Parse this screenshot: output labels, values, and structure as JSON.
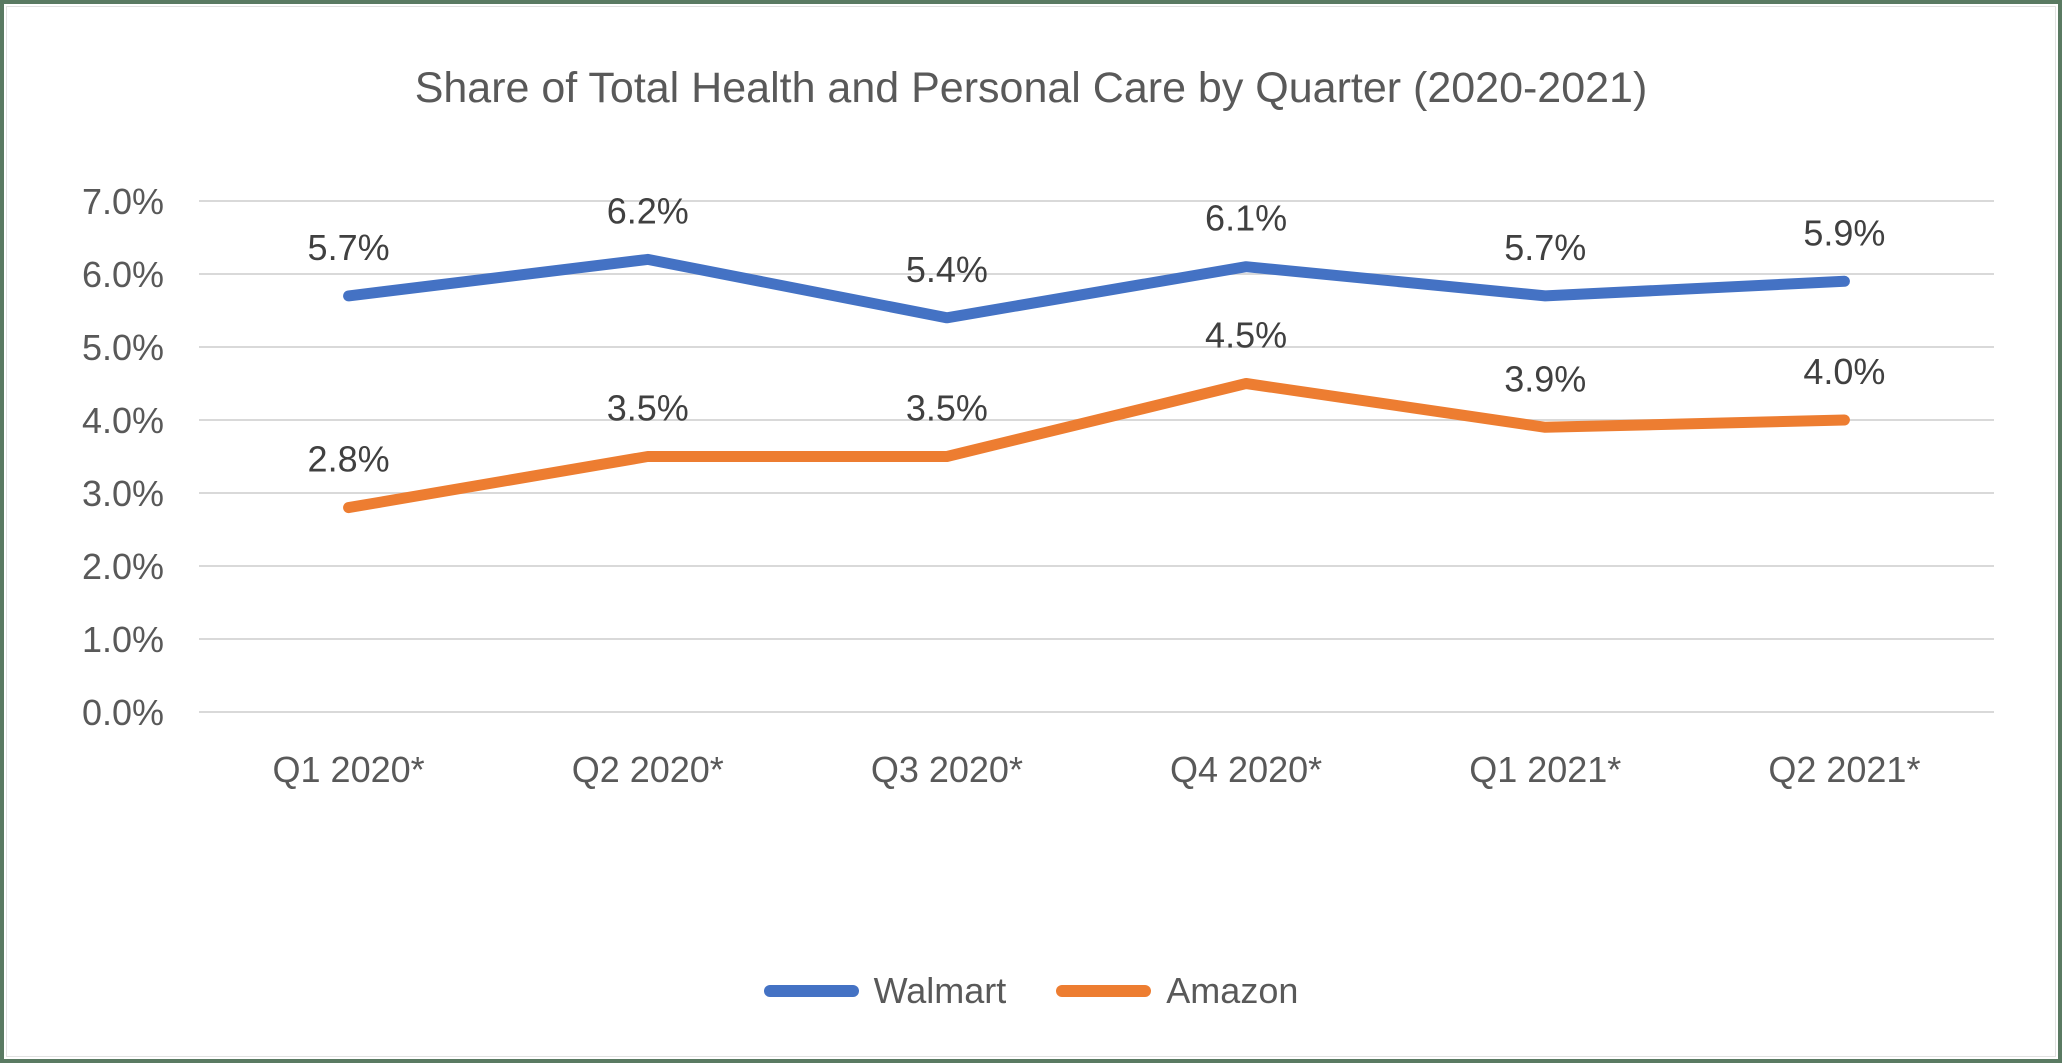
{
  "frame": {
    "border_color": "#5a7a62",
    "inner_line_color": "#e2e2e2",
    "background": "#ffffff"
  },
  "chart_data": {
    "type": "line",
    "title": "Share of Total Health and Personal Care by Quarter (2020-2021)",
    "categories": [
      "Q1 2020*",
      "Q2 2020*",
      "Q3 2020*",
      "Q4 2020*",
      "Q1 2021*",
      "Q2 2021*"
    ],
    "series": [
      {
        "name": "Walmart",
        "color": "#4472C4",
        "values": [
          5.7,
          6.2,
          5.4,
          6.1,
          5.7,
          5.9
        ],
        "labels": [
          "5.7%",
          "6.2%",
          "5.4%",
          "6.1%",
          "5.7%",
          "5.9%"
        ]
      },
      {
        "name": "Amazon",
        "color": "#ED7D31",
        "values": [
          2.8,
          3.5,
          3.5,
          4.5,
          3.9,
          4.0
        ],
        "labels": [
          "2.8%",
          "3.5%",
          "3.5%",
          "4.5%",
          "3.9%",
          "4.0%"
        ]
      }
    ],
    "ylim": [
      0,
      7
    ],
    "ytick_step": 1,
    "ytick_labels": [
      "0.0%",
      "1.0%",
      "2.0%",
      "3.0%",
      "4.0%",
      "5.0%",
      "6.0%",
      "7.0%"
    ],
    "grid": true,
    "gridline_color": "#d9d9d9",
    "axis_text_color": "#595959",
    "data_label_color": "#404040",
    "title_color": "#595959",
    "legend_position": "bottom"
  }
}
